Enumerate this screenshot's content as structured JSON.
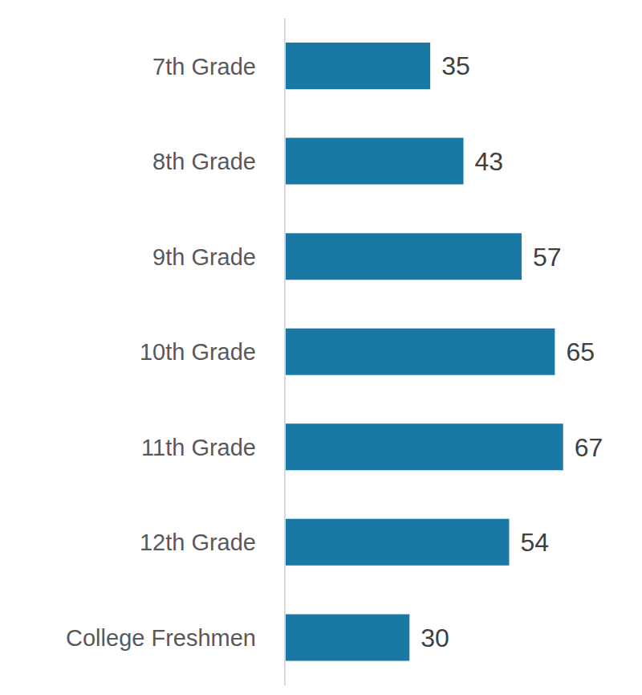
{
  "chart_data": {
    "type": "bar",
    "orientation": "horizontal",
    "categories": [
      "7th Grade",
      "8th Grade",
      "9th Grade",
      "10th Grade",
      "11th Grade",
      "12th Grade",
      "College Freshmen"
    ],
    "values": [
      35,
      43,
      57,
      65,
      67,
      54,
      30
    ],
    "color": "#1a78a5",
    "xlim": [
      0,
      80
    ],
    "data_labels": true,
    "tick_labels": "y",
    "grid": false
  }
}
